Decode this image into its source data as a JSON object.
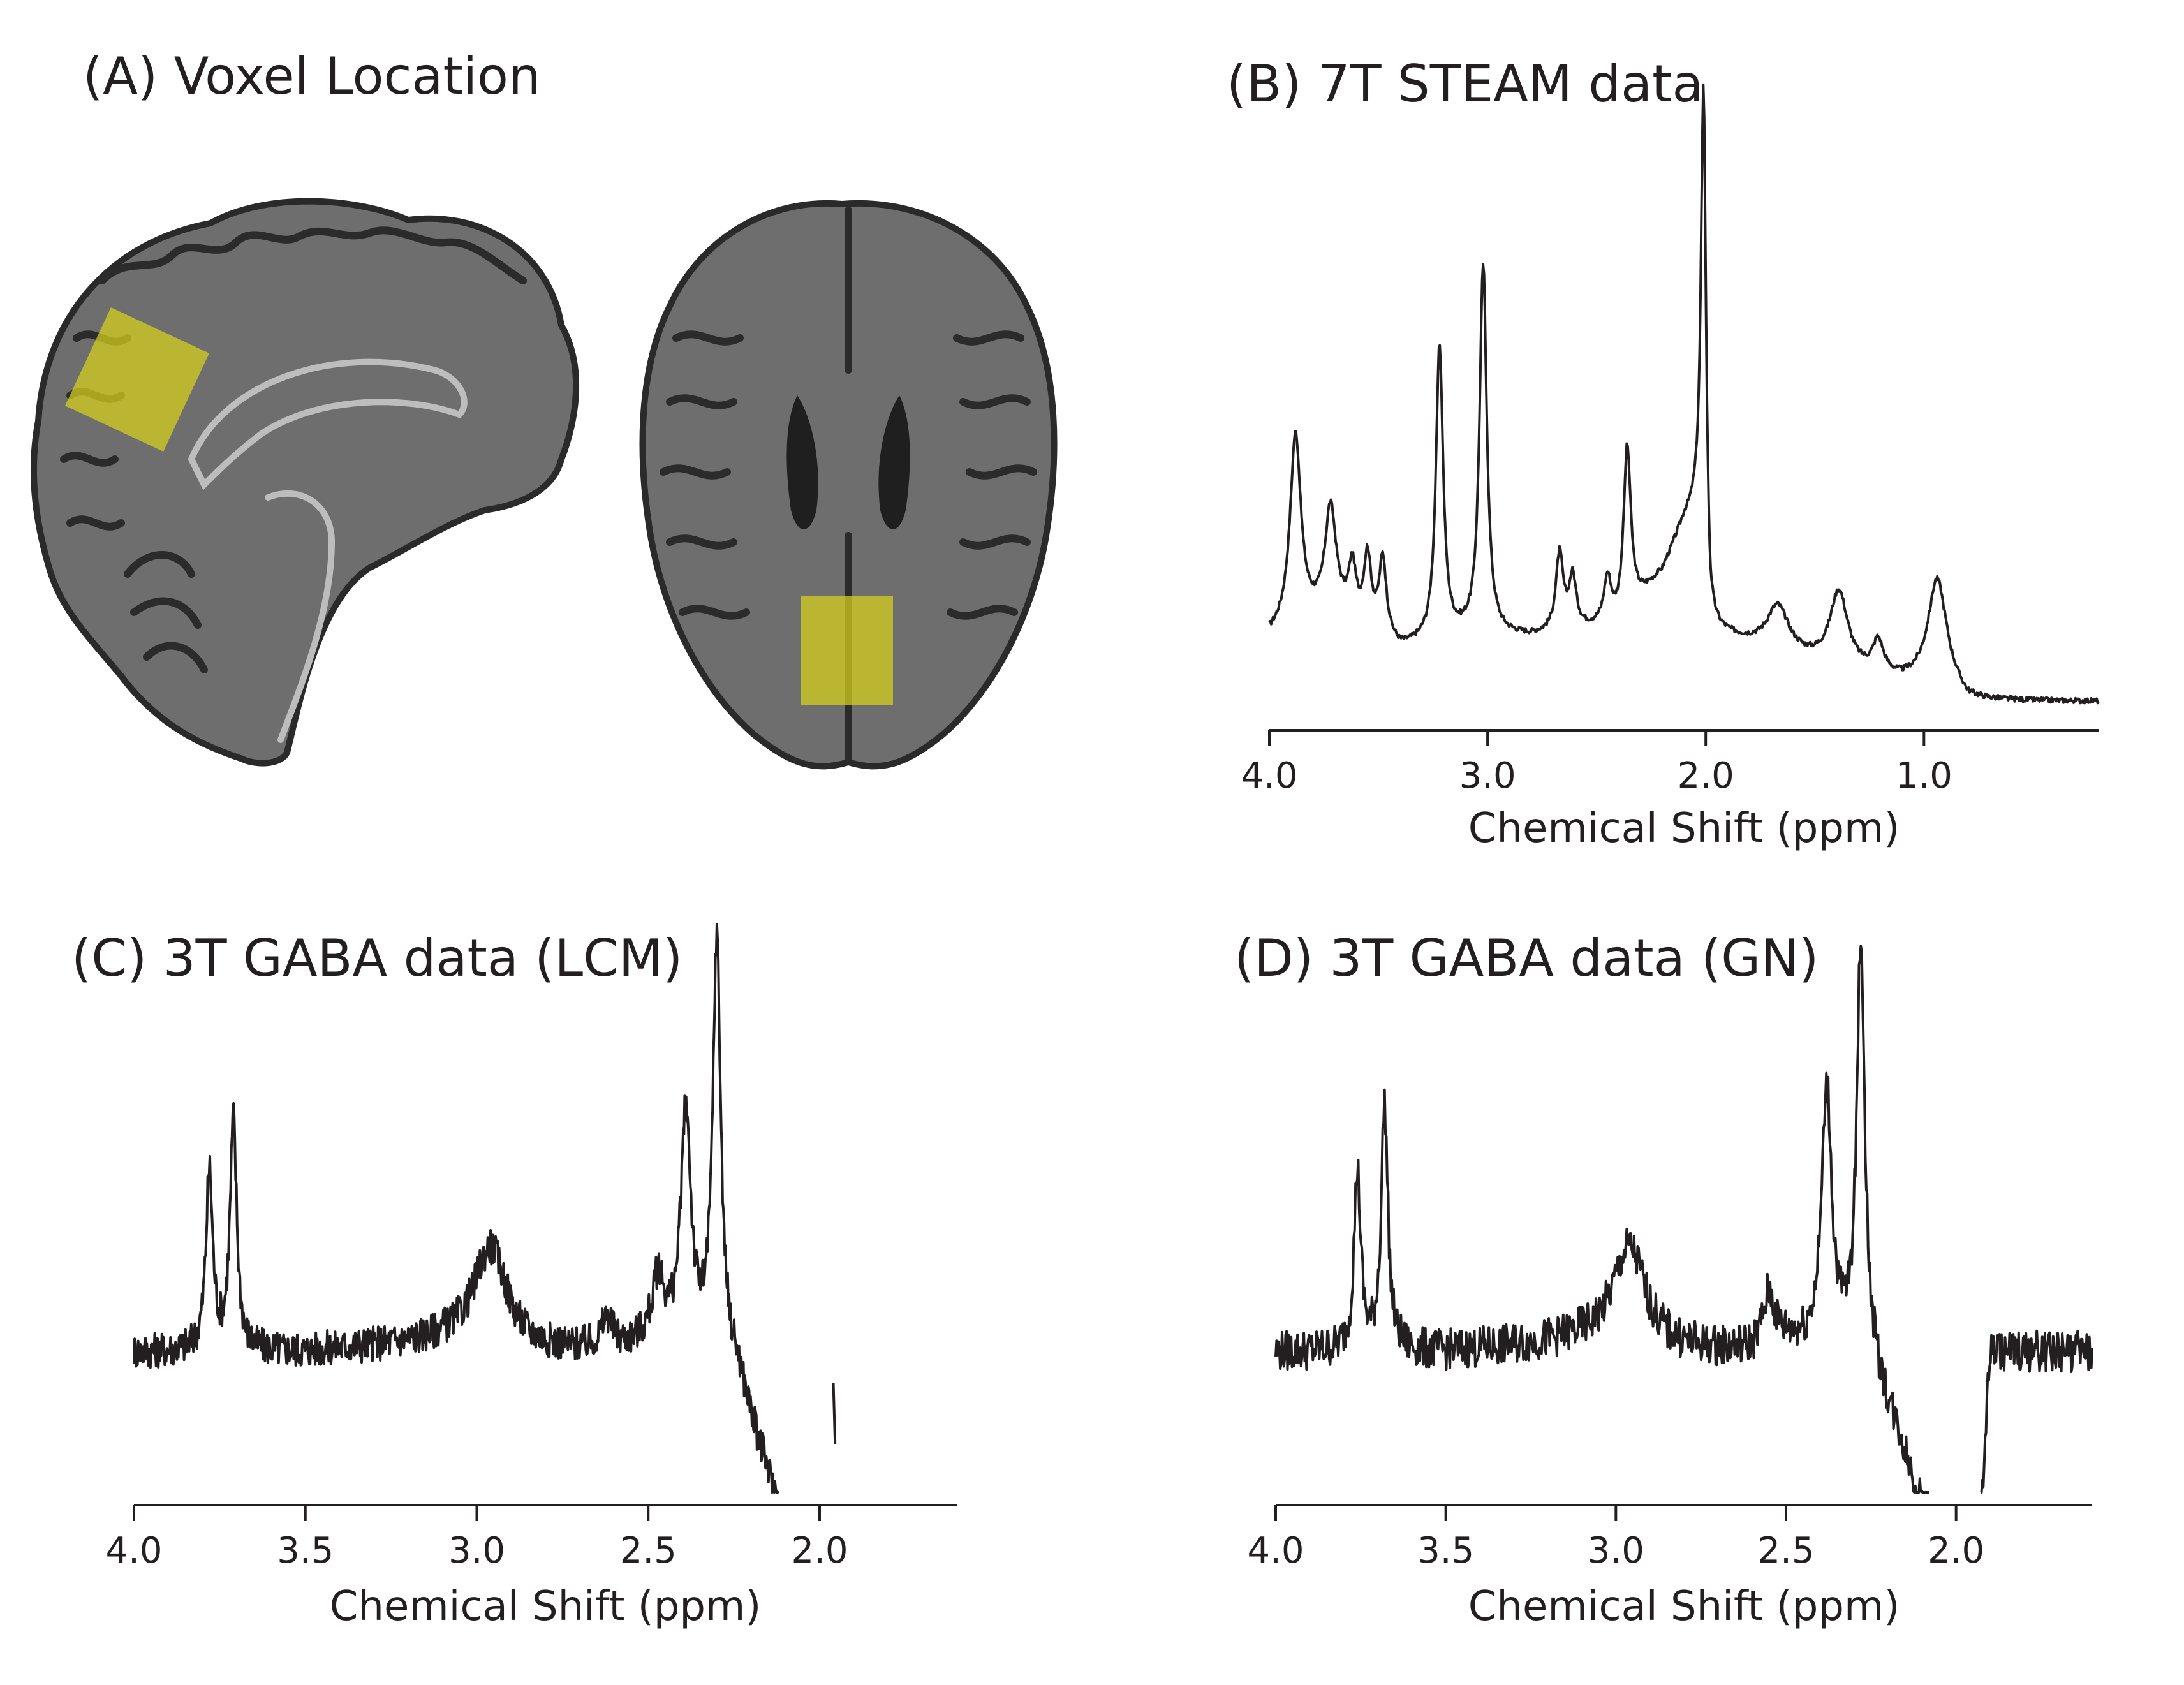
{
  "panels": {
    "a": {
      "title": "(A) Voxel Location"
    },
    "b": {
      "title": "(B) 7T STEAM data"
    },
    "c": {
      "title": "(C) 3T GABA data (LCM)"
    },
    "d": {
      "title": "(D) 3T GABA data (GN)"
    }
  },
  "colors": {
    "trace": "#231f20",
    "voxel": "#d9d21a",
    "background": "#ffffff"
  },
  "chart_data": [
    {
      "id": "b",
      "type": "line",
      "title": "(B) 7T STEAM data",
      "xlabel": "Chemical Shift (ppm)",
      "ylabel": "",
      "x_reversed": true,
      "xlim": [
        4.0,
        0.2
      ],
      "xticks": [
        4.0,
        3.0,
        2.0,
        1.0
      ],
      "xtick_labels": [
        "4.0",
        "3.0",
        "2.0",
        "1.0"
      ],
      "grid": false,
      "noise": 0.004,
      "baseline": [
        [
          4.0,
          0.12
        ],
        [
          3.7,
          0.16
        ],
        [
          3.4,
          0.1
        ],
        [
          3.1,
          0.12
        ],
        [
          2.8,
          0.12
        ],
        [
          2.4,
          0.14
        ],
        [
          2.2,
          0.22
        ],
        [
          2.1,
          0.3
        ],
        [
          2.02,
          0.33
        ],
        [
          1.98,
          0.13
        ],
        [
          1.7,
          0.1
        ],
        [
          1.4,
          0.07
        ],
        [
          1.1,
          0.05
        ],
        [
          0.9,
          0.05
        ],
        [
          0.8,
          0.02
        ],
        [
          0.2,
          0.02
        ]
      ],
      "peaks": [
        {
          "ppm": 3.88,
          "height": 0.3,
          "width": 0.03
        },
        {
          "ppm": 3.72,
          "height": 0.16,
          "width": 0.03
        },
        {
          "ppm": 3.62,
          "height": 0.08,
          "width": 0.02
        },
        {
          "ppm": 3.55,
          "height": 0.11,
          "width": 0.02
        },
        {
          "ppm": 3.48,
          "height": 0.12,
          "width": 0.02
        },
        {
          "ppm": 3.22,
          "height": 0.46,
          "width": 0.02
        },
        {
          "ppm": 3.02,
          "height": 0.58,
          "width": 0.02
        },
        {
          "ppm": 2.67,
          "height": 0.12,
          "width": 0.02
        },
        {
          "ppm": 2.61,
          "height": 0.08,
          "width": 0.02
        },
        {
          "ppm": 2.45,
          "height": 0.07,
          "width": 0.02
        },
        {
          "ppm": 2.36,
          "height": 0.26,
          "width": 0.02
        },
        {
          "ppm": 2.01,
          "height": 0.7,
          "width": 0.013
        },
        {
          "ppm": 1.67,
          "height": 0.07,
          "width": 0.06
        },
        {
          "ppm": 1.39,
          "height": 0.12,
          "width": 0.05
        },
        {
          "ppm": 1.21,
          "height": 0.05,
          "width": 0.03
        },
        {
          "ppm": 0.94,
          "height": 0.16,
          "width": 0.05
        }
      ]
    },
    {
      "id": "c",
      "type": "line",
      "title": "(C) 3T GABA data (LCM)",
      "xlabel": "Chemical Shift (ppm)",
      "ylabel": "",
      "x_reversed": true,
      "xlim": [
        4.0,
        1.6
      ],
      "xticks": [
        4.0,
        3.5,
        3.0,
        2.5,
        2.0
      ],
      "xtick_labels": [
        "4.0",
        "3.5",
        "3.0",
        "2.5",
        "2.0"
      ],
      "grid": false,
      "noise": 0.035,
      "x_end": 2.12,
      "extra_segment": [
        1.955,
        1.96,
        -0.12,
        -0.02
      ],
      "baseline": [
        [
          4.0,
          0.0
        ],
        [
          3.85,
          0.0
        ],
        [
          3.5,
          0.0
        ],
        [
          3.1,
          0.02
        ],
        [
          2.9,
          0.0
        ],
        [
          2.6,
          0.0
        ],
        [
          2.5,
          0.02
        ],
        [
          2.3,
          0.0
        ],
        [
          2.24,
          -0.04
        ],
        [
          2.18,
          -0.18
        ],
        [
          2.12,
          -0.3
        ]
      ],
      "peaks": [
        {
          "ppm": 3.78,
          "height": 0.35,
          "width": 0.012
        },
        {
          "ppm": 3.71,
          "height": 0.45,
          "width": 0.012
        },
        {
          "ppm": 2.96,
          "height": 0.2,
          "width": 0.06
        },
        {
          "ppm": 2.62,
          "height": 0.06,
          "width": 0.02
        },
        {
          "ppm": 2.47,
          "height": 0.12,
          "width": 0.02
        },
        {
          "ppm": 2.39,
          "height": 0.45,
          "width": 0.018
        },
        {
          "ppm": 2.3,
          "height": 0.8,
          "width": 0.014
        }
      ]
    },
    {
      "id": "d",
      "type": "line",
      "title": "(D) 3T GABA data (GN)",
      "xlabel": "Chemical Shift (ppm)",
      "ylabel": "",
      "x_reversed": true,
      "xlim": [
        4.0,
        1.6
      ],
      "xticks": [
        4.0,
        3.5,
        3.0,
        2.5,
        2.0
      ],
      "xtick_labels": [
        "4.0",
        "3.5",
        "3.0",
        "2.5",
        "2.0"
      ],
      "grid": false,
      "noise": 0.04,
      "gap": [
        2.08,
        1.93
      ],
      "baseline": [
        [
          4.0,
          0.0
        ],
        [
          3.85,
          0.0
        ],
        [
          3.5,
          0.0
        ],
        [
          3.1,
          0.02
        ],
        [
          2.9,
          0.0
        ],
        [
          2.6,
          0.0
        ],
        [
          2.5,
          0.02
        ],
        [
          2.3,
          0.0
        ],
        [
          2.24,
          -0.05
        ],
        [
          2.16,
          -0.18
        ],
        [
          2.08,
          -0.35
        ],
        [
          1.93,
          -0.35
        ],
        [
          1.9,
          0.0
        ],
        [
          1.6,
          0.0
        ]
      ],
      "peaks": [
        {
          "ppm": 3.76,
          "height": 0.35,
          "width": 0.012
        },
        {
          "ppm": 3.68,
          "height": 0.48,
          "width": 0.012
        },
        {
          "ppm": 2.96,
          "height": 0.2,
          "width": 0.06
        },
        {
          "ppm": 2.55,
          "height": 0.1,
          "width": 0.02
        },
        {
          "ppm": 2.38,
          "height": 0.5,
          "width": 0.018
        },
        {
          "ppm": 2.28,
          "height": 0.82,
          "width": 0.014
        }
      ]
    }
  ]
}
